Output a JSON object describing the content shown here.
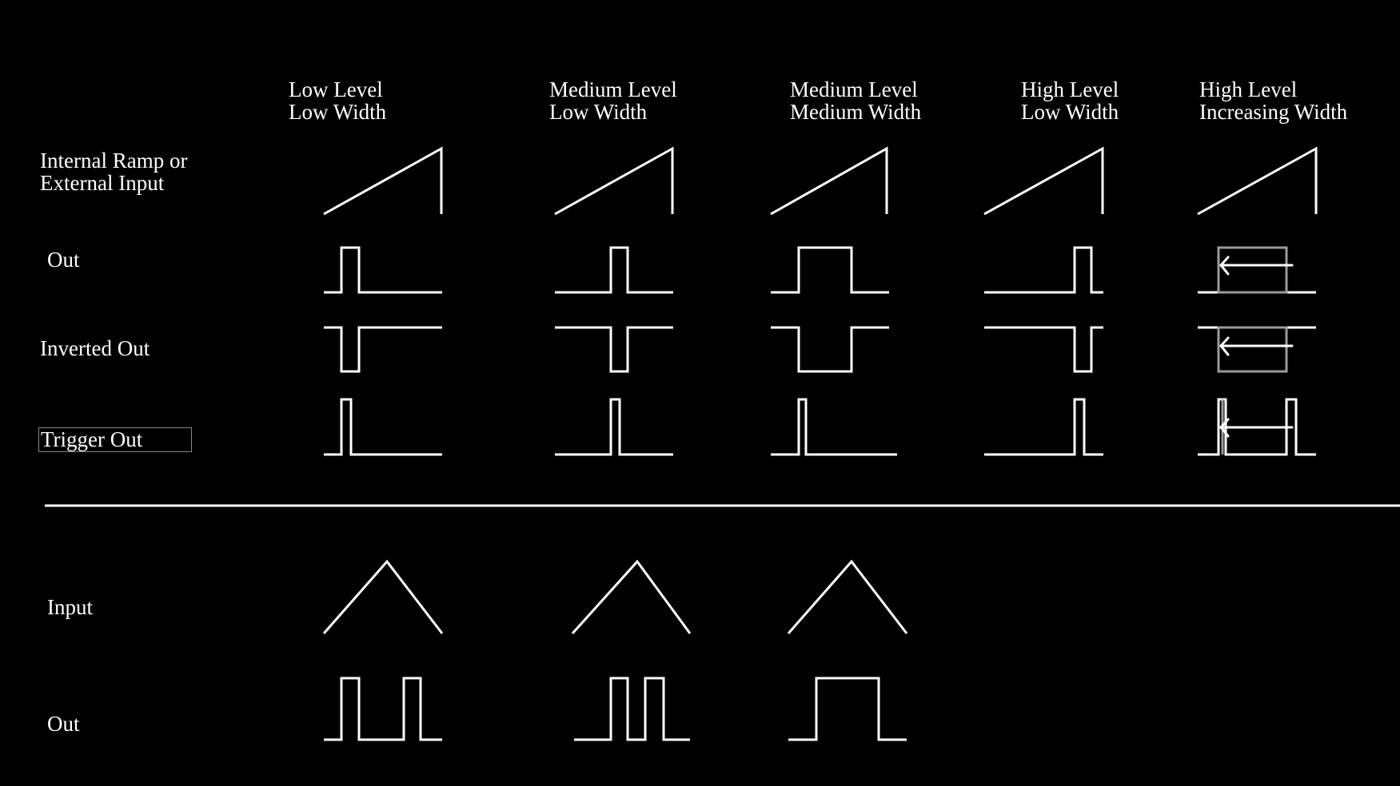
{
  "theme": {
    "background": "#000000",
    "stroke": "#ffffff",
    "overlay_stroke": "#9a9a9a"
  },
  "columns": [
    {
      "line1": "Low Level",
      "line2": "Low Width"
    },
    {
      "line1": "Medium Level",
      "line2": "Low Width"
    },
    {
      "line1": "Medium Level",
      "line2": "Medium Width"
    },
    {
      "line1": "High Level",
      "line2": "Low Width"
    },
    {
      "line1": "High Level",
      "line2": "Increasing Width"
    }
  ],
  "rows": {
    "ramp": {
      "line1": "Internal Ramp or",
      "line2": "External Input"
    },
    "out": "Out",
    "inverted": "Inverted Out",
    "trigger": "Trigger Out",
    "input": "Input",
    "out2": "Out"
  },
  "icons": {
    "ramp": "ramp-waveform-icon",
    "pulse": "pulse-waveform-icon",
    "inverted_pulse": "inverted-pulse-waveform-icon",
    "trigger": "trigger-waveform-icon",
    "triangle": "triangle-waveform-icon",
    "width_arrow": "left-arrow-icon"
  }
}
